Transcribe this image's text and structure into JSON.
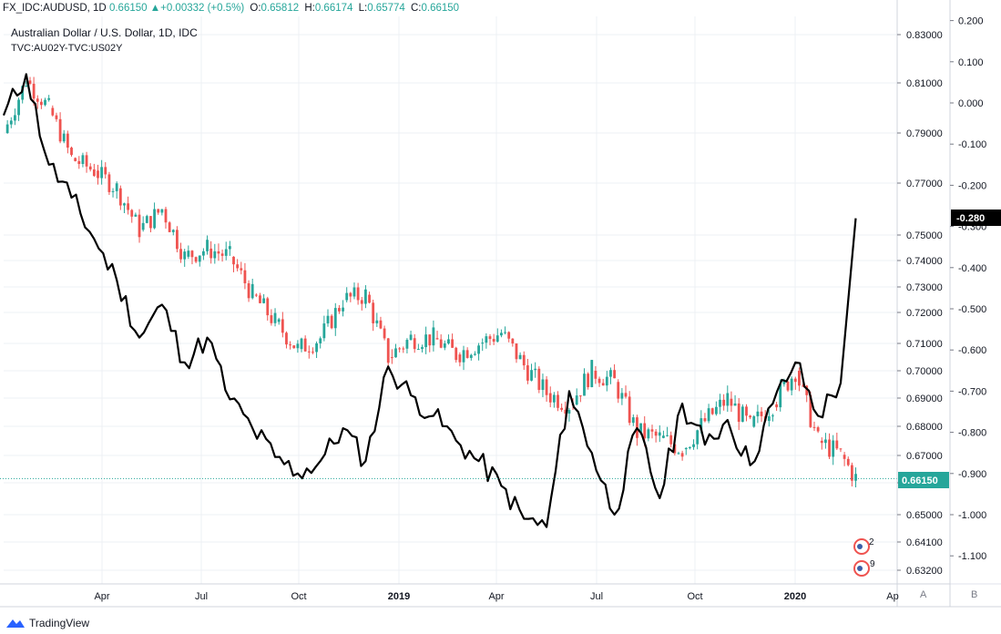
{
  "header": {
    "symbol": "FX_IDC:AUDUSD, 1D",
    "last": "0.66150",
    "change": "+0.00332 (+0.5%)",
    "o_label": "O:",
    "o": "0.65812",
    "h_label": "H:",
    "h": "0.66174",
    "l_label": "L:",
    "l": "0.65774",
    "c_label": "C:",
    "c": "0.66150"
  },
  "legend": {
    "title": "Australian Dollar / U.S. Dollar, 1D, IDC",
    "study": "TVC:AU02Y-TVC:US02Y"
  },
  "footer": {
    "brand": "TradingView"
  },
  "scale_buttons": {
    "a": "A",
    "b": "B"
  },
  "colors": {
    "up": "#26a69a",
    "down": "#ef5350",
    "spread": "#000000",
    "price_tag": "#26a69a",
    "spread_tag": "#000000"
  },
  "chart_data": {
    "type": "line",
    "x_ticks": [
      "Apr",
      "Jul",
      "Oct",
      "2019",
      "Apr",
      "Jul",
      "Oct",
      "2020",
      "Ap"
    ],
    "price_axis": {
      "ticks": [
        "0.83000",
        "0.81000",
        "0.79000",
        "0.77000",
        "0.75000",
        "0.74000",
        "0.73000",
        "0.72000",
        "0.71000",
        "0.70000",
        "0.69000",
        "0.68000",
        "0.67000",
        "0.66000",
        "0.65000",
        "0.64100",
        "0.63200"
      ],
      "current_label": "0.66150",
      "current_value": 0.6615
    },
    "spread_axis": {
      "ticks": [
        "0.200",
        "0.100",
        "0.000",
        "-0.100",
        "-0.200",
        "-0.300",
        "-0.400",
        "-0.500",
        "-0.600",
        "-0.700",
        "-0.800",
        "-0.900",
        "-1.000",
        "-1.100"
      ],
      "current_label": "-0.280",
      "current_value": -0.28
    },
    "event_badges": [
      "2",
      "9"
    ],
    "series": [
      {
        "name": "FX_IDC:AUDUSD",
        "style": "candles",
        "x": [
          "2018-01-01",
          "2018-01-22",
          "2018-02-12",
          "2018-03-05",
          "2018-03-26",
          "2018-04-16",
          "2018-05-07",
          "2018-05-28",
          "2018-06-18",
          "2018-07-09",
          "2018-07-30",
          "2018-08-20",
          "2018-09-10",
          "2018-10-01",
          "2018-10-22",
          "2018-11-12",
          "2018-12-03",
          "2018-12-24",
          "2019-01-14",
          "2019-02-04",
          "2019-02-25",
          "2019-03-18",
          "2019-04-08",
          "2019-04-29",
          "2019-05-20",
          "2019-06-10",
          "2019-07-01",
          "2019-07-22",
          "2019-08-12",
          "2019-09-02",
          "2019-09-23",
          "2019-10-14",
          "2019-11-04",
          "2019-11-25",
          "2019-12-16",
          "2020-01-06",
          "2020-01-27",
          "2020-02-17",
          "2020-03-02"
        ],
        "values": [
          0.79,
          0.811,
          0.8,
          0.78,
          0.775,
          0.768,
          0.752,
          0.76,
          0.742,
          0.745,
          0.742,
          0.728,
          0.718,
          0.708,
          0.712,
          0.726,
          0.728,
          0.705,
          0.712,
          0.712,
          0.706,
          0.71,
          0.714,
          0.702,
          0.692,
          0.688,
          0.7,
          0.696,
          0.678,
          0.676,
          0.672,
          0.682,
          0.69,
          0.68,
          0.688,
          0.7,
          0.675,
          0.67,
          0.6615
        ]
      },
      {
        "name": "TVC:AU02Y-TVC:US02Y",
        "style": "line",
        "x": [
          "2018-01-01",
          "2018-01-22",
          "2018-02-12",
          "2018-03-05",
          "2018-03-26",
          "2018-04-16",
          "2018-05-07",
          "2018-05-28",
          "2018-06-18",
          "2018-07-09",
          "2018-07-30",
          "2018-08-20",
          "2018-09-10",
          "2018-10-01",
          "2018-10-22",
          "2018-11-12",
          "2018-12-03",
          "2018-12-24",
          "2019-01-14",
          "2019-02-04",
          "2019-02-25",
          "2019-03-18",
          "2019-04-08",
          "2019-04-29",
          "2019-05-20",
          "2019-06-10",
          "2019-07-01",
          "2019-07-22",
          "2019-08-12",
          "2019-09-02",
          "2019-09-23",
          "2019-10-14",
          "2019-11-04",
          "2019-11-25",
          "2019-12-16",
          "2020-01-06",
          "2020-01-27",
          "2020-02-17",
          "2020-03-02"
        ],
        "values": [
          -0.03,
          0.07,
          -0.15,
          -0.23,
          -0.33,
          -0.43,
          -0.57,
          -0.49,
          -0.63,
          -0.57,
          -0.72,
          -0.79,
          -0.86,
          -0.9,
          -0.87,
          -0.79,
          -0.87,
          -0.64,
          -0.71,
          -0.76,
          -0.82,
          -0.87,
          -0.93,
          -1.01,
          -1.03,
          -0.7,
          -0.85,
          -1.0,
          -0.79,
          -0.96,
          -0.73,
          -0.83,
          -0.77,
          -0.88,
          -0.73,
          -0.63,
          -0.76,
          -0.68,
          -0.28
        ]
      }
    ]
  }
}
